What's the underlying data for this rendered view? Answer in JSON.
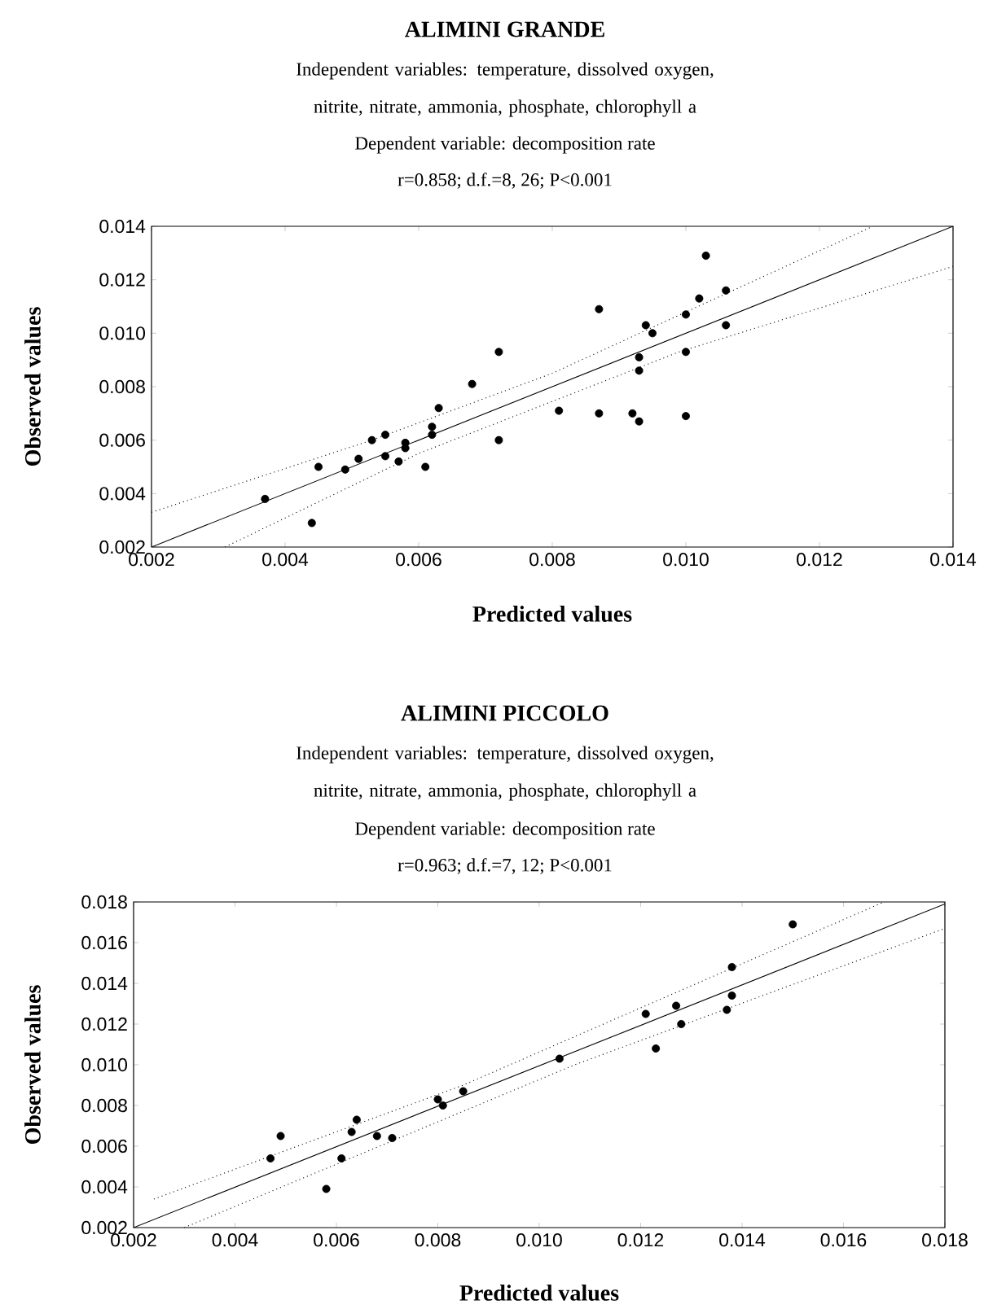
{
  "chart_data": [
    {
      "type": "scatter",
      "title": "ALIMINI GRANDE",
      "subtitle": "Independent variables: temperature, dissolved oxygen, nitrite, nitrate, ammonia, phosphate, chlorophyll a",
      "annotations": [
        "Dependent variable: decomposition rate",
        "r=0.858; d.f.=8, 26; P<0.001"
      ],
      "xlabel": "Predicted values",
      "ylabel": "Observed values",
      "xlim": [
        0.002,
        0.014
      ],
      "ylim": [
        0.002,
        0.014
      ],
      "xticks": [
        0.002,
        0.004,
        0.006,
        0.008,
        {
          "value": 0.01,
          "label": "0.010"
        },
        0.012,
        0.014
      ],
      "yticks": [
        0.002,
        0.004,
        0.006,
        0.008,
        {
          "value": 0.01,
          "label": "0.010"
        },
        0.012,
        0.014
      ],
      "series": [
        {
          "type": "scatter",
          "marker": "circle",
          "color": "#000000",
          "x": [
            0.0037,
            0.0044,
            0.0045,
            0.0049,
            0.0051,
            0.0053,
            0.0055,
            0.0055,
            0.0057,
            0.0058,
            0.0058,
            0.0061,
            0.0062,
            0.0062,
            0.0063,
            0.0068,
            0.0072,
            0.0072,
            0.0081,
            0.0087,
            0.0087,
            0.0092,
            0.0093,
            0.0093,
            0.0093,
            0.0094,
            0.0095,
            0.01,
            0.01,
            0.01,
            0.0102,
            0.0106,
            0.0103,
            0.0106
          ],
          "values": [
            0.0038,
            0.0029,
            0.005,
            0.0049,
            0.0053,
            0.006,
            0.0062,
            0.0054,
            0.0052,
            0.0059,
            0.0057,
            0.005,
            0.0065,
            0.0062,
            0.0072,
            0.0081,
            0.0093,
            0.006,
            0.0071,
            0.007,
            0.0109,
            0.007,
            0.0067,
            0.0086,
            0.0091,
            0.0103,
            0.01,
            0.0093,
            0.0069,
            0.0107,
            0.0113,
            0.0103,
            0.0129,
            0.0116
          ]
        },
        {
          "type": "line",
          "line_style": "solid",
          "color": "#000000",
          "x": [
            0.002,
            0.014
          ],
          "values": [
            0.002,
            0.014
          ]
        },
        {
          "type": "line",
          "line_style": "dotted",
          "color": "#000000",
          "x": [
            0.002,
            0.0053,
            0.008,
            0.0128
          ],
          "values": [
            0.0033,
            0.006,
            0.0085,
            0.014
          ]
        },
        {
          "type": "line",
          "line_style": "dotted",
          "color": "#000000",
          "x": [
            0.0031,
            0.006,
            0.0099,
            0.014
          ],
          "values": [
            0.002,
            0.0055,
            0.0093,
            0.0125
          ]
        }
      ]
    },
    {
      "type": "scatter",
      "title": "ALIMINI PICCOLO",
      "subtitle": "Independent variables: temperature, dissolved oxygen, nitrite, nitrate, ammonia, phosphate, chlorophyll a",
      "annotations": [
        "Dependent variable: decomposition rate",
        "r=0.963; d.f.=7, 12; P<0.001"
      ],
      "xlabel": "Predicted values",
      "ylabel": "Observed values",
      "xlim": [
        0.002,
        0.018
      ],
      "ylim": [
        0.002,
        0.018
      ],
      "xticks": [
        0.002,
        0.004,
        0.006,
        0.008,
        {
          "value": 0.01,
          "label": "0.010"
        },
        0.012,
        0.014,
        0.016,
        0.018
      ],
      "yticks": [
        0.002,
        0.004,
        0.006,
        0.008,
        {
          "value": 0.01,
          "label": "0.010"
        },
        0.012,
        0.014,
        0.016,
        0.018
      ],
      "series": [
        {
          "type": "scatter",
          "marker": "circle",
          "color": "#000000",
          "x": [
            0.0047,
            0.0049,
            0.0058,
            0.0061,
            0.0063,
            0.0064,
            0.0068,
            0.0071,
            0.008,
            0.0081,
            0.0085,
            0.0104,
            0.0121,
            0.0123,
            0.0127,
            0.0128,
            0.0137,
            0.0138,
            0.0138,
            0.015
          ],
          "values": [
            0.0054,
            0.0065,
            0.0039,
            0.0054,
            0.0067,
            0.0073,
            0.0065,
            0.0064,
            0.0083,
            0.008,
            0.0087,
            0.0103,
            0.0125,
            0.0108,
            0.0129,
            0.012,
            0.0127,
            0.0148,
            0.0134,
            0.0169
          ]
        },
        {
          "type": "line",
          "line_style": "solid",
          "color": "#000000",
          "x": [
            0.002,
            0.018
          ],
          "values": [
            0.002,
            0.0179
          ]
        },
        {
          "type": "line",
          "line_style": "dotted",
          "color": "#000000",
          "x": [
            0.0024,
            0.0085,
            0.0168
          ],
          "values": [
            0.0034,
            0.009,
            0.018
          ]
        },
        {
          "type": "line",
          "line_style": "dotted",
          "color": "#000000",
          "x": [
            0.003,
            0.0107,
            0.018
          ],
          "values": [
            0.002,
            0.01,
            0.0167
          ]
        }
      ]
    }
  ]
}
